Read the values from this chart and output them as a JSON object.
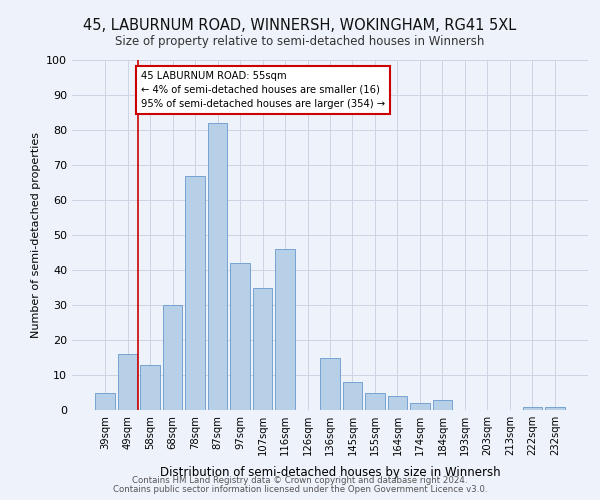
{
  "title": "45, LABURNUM ROAD, WINNERSH, WOKINGHAM, RG41 5XL",
  "subtitle": "Size of property relative to semi-detached houses in Winnersh",
  "xlabel": "Distribution of semi-detached houses by size in Winnersh",
  "ylabel": "Number of semi-detached properties",
  "bar_labels": [
    "39sqm",
    "49sqm",
    "58sqm",
    "68sqm",
    "78sqm",
    "87sqm",
    "97sqm",
    "107sqm",
    "116sqm",
    "126sqm",
    "136sqm",
    "145sqm",
    "155sqm",
    "164sqm",
    "174sqm",
    "184sqm",
    "193sqm",
    "203sqm",
    "213sqm",
    "222sqm",
    "232sqm"
  ],
  "bar_values": [
    5,
    16,
    13,
    30,
    67,
    82,
    42,
    35,
    46,
    0,
    15,
    8,
    5,
    4,
    2,
    3,
    0,
    0,
    0,
    1,
    1
  ],
  "bar_color": "#b8cfe8",
  "bar_edge_color": "#6699cc",
  "property_line_label": "45 LABURNUM ROAD: 55sqm",
  "annotation_smaller": "← 4% of semi-detached houses are smaller (16)",
  "annotation_larger": "95% of semi-detached houses are larger (354) →",
  "annotation_box_color": "#ffffff",
  "annotation_box_edge_color": "#cc0000",
  "property_line_color": "#cc0000",
  "grid_color": "#ccd5e5",
  "background_color": "#eef2fa",
  "ylim": [
    0,
    100
  ],
  "footer1": "Contains HM Land Registry data © Crown copyright and database right 2024.",
  "footer2": "Contains public sector information licensed under the Open Government Licence v3.0."
}
